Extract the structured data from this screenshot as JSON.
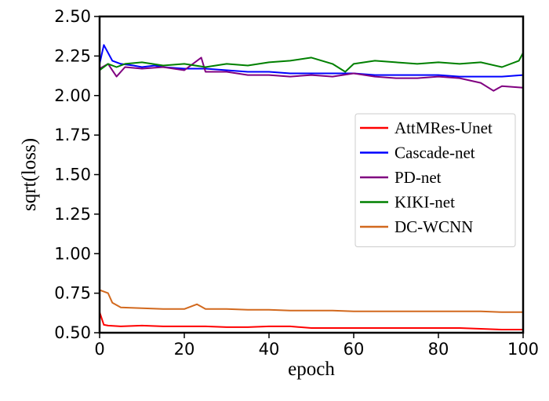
{
  "chart_data": {
    "type": "line",
    "title": "",
    "xlabel": "epoch",
    "ylabel": "sqrt(loss)",
    "xlim": [
      0,
      100
    ],
    "ylim": [
      0.5,
      2.5
    ],
    "xticks": [
      "0",
      "20",
      "40",
      "60",
      "80",
      "100"
    ],
    "yticks": [
      "0.50",
      "0.75",
      "1.00",
      "1.25",
      "1.50",
      "1.75",
      "2.00",
      "2.25",
      "2.50"
    ],
    "grid": false,
    "legend_position": "center-right",
    "series": [
      {
        "name": "AttMRes-Unet",
        "color": "#ff0000",
        "x": [
          0,
          1,
          2,
          5,
          10,
          15,
          20,
          25,
          30,
          35,
          40,
          45,
          50,
          55,
          60,
          65,
          70,
          75,
          80,
          85,
          90,
          95,
          100
        ],
        "values": [
          0.63,
          0.55,
          0.545,
          0.54,
          0.545,
          0.54,
          0.54,
          0.54,
          0.535,
          0.535,
          0.54,
          0.54,
          0.53,
          0.53,
          0.53,
          0.53,
          0.53,
          0.53,
          0.53,
          0.53,
          0.525,
          0.52,
          0.52
        ]
      },
      {
        "name": "Cascade-net",
        "color": "#0000ff",
        "x": [
          0,
          1,
          3,
          5,
          8,
          10,
          13,
          15,
          20,
          25,
          30,
          35,
          40,
          45,
          50,
          55,
          60,
          65,
          70,
          75,
          80,
          85,
          90,
          95,
          100
        ],
        "values": [
          2.2,
          2.32,
          2.22,
          2.2,
          2.19,
          2.18,
          2.19,
          2.18,
          2.17,
          2.17,
          2.16,
          2.15,
          2.15,
          2.14,
          2.14,
          2.14,
          2.14,
          2.13,
          2.13,
          2.13,
          2.13,
          2.12,
          2.12,
          2.12,
          2.13
        ]
      },
      {
        "name": "PD-net",
        "color": "#800080",
        "x": [
          0,
          2,
          4,
          6,
          10,
          15,
          20,
          24,
          25,
          30,
          35,
          40,
          45,
          50,
          55,
          60,
          65,
          70,
          75,
          80,
          85,
          90,
          93,
          95,
          100
        ],
        "values": [
          2.17,
          2.2,
          2.12,
          2.18,
          2.17,
          2.18,
          2.16,
          2.24,
          2.15,
          2.15,
          2.13,
          2.13,
          2.12,
          2.13,
          2.12,
          2.14,
          2.12,
          2.11,
          2.11,
          2.12,
          2.11,
          2.08,
          2.03,
          2.06,
          2.05
        ]
      },
      {
        "name": "KIKI-net",
        "color": "#008000",
        "x": [
          0,
          2,
          4,
          6,
          10,
          15,
          20,
          25,
          30,
          35,
          40,
          45,
          50,
          55,
          58,
          60,
          65,
          70,
          75,
          80,
          85,
          90,
          95,
          99,
          100
        ],
        "values": [
          2.16,
          2.2,
          2.18,
          2.2,
          2.21,
          2.19,
          2.2,
          2.18,
          2.2,
          2.19,
          2.21,
          2.22,
          2.24,
          2.2,
          2.15,
          2.2,
          2.22,
          2.21,
          2.2,
          2.21,
          2.2,
          2.21,
          2.18,
          2.22,
          2.27
        ]
      },
      {
        "name": "DC-WCNN",
        "color": "#d2691e",
        "x": [
          0,
          1,
          2,
          3,
          5,
          10,
          15,
          20,
          23,
          25,
          30,
          35,
          40,
          45,
          50,
          55,
          60,
          65,
          70,
          75,
          80,
          85,
          90,
          95,
          100
        ],
        "values": [
          0.77,
          0.76,
          0.75,
          0.69,
          0.66,
          0.655,
          0.65,
          0.65,
          0.68,
          0.65,
          0.65,
          0.645,
          0.645,
          0.64,
          0.64,
          0.64,
          0.635,
          0.635,
          0.635,
          0.635,
          0.635,
          0.635,
          0.635,
          0.63,
          0.63
        ]
      }
    ]
  }
}
